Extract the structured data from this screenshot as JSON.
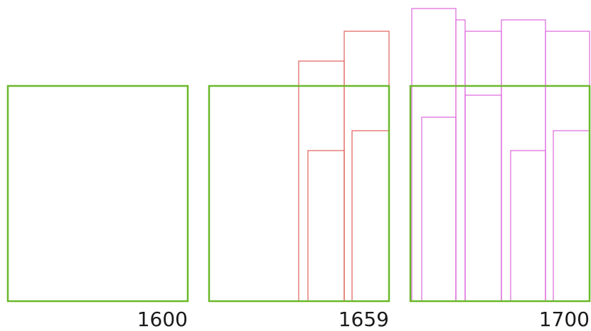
{
  "panels": [
    {
      "label": "1600",
      "overlay": []
    },
    {
      "label": "1659",
      "overlay": [
        "p2-r1",
        "p2-r2",
        "p2-r3",
        "p2-r4"
      ]
    },
    {
      "label": "1700",
      "overlay": [
        "p3-r1",
        "p3-r2",
        "p3-r3",
        "p3-r4",
        "p3-r5",
        "p3-r6",
        "p3-r7",
        "p3-r8",
        "p3-r9"
      ]
    }
  ],
  "colors": {
    "base": "#6ab82a",
    "panel_1659_overlay": "#e0605a",
    "panel_1700_overlay": "#dd66dd"
  }
}
